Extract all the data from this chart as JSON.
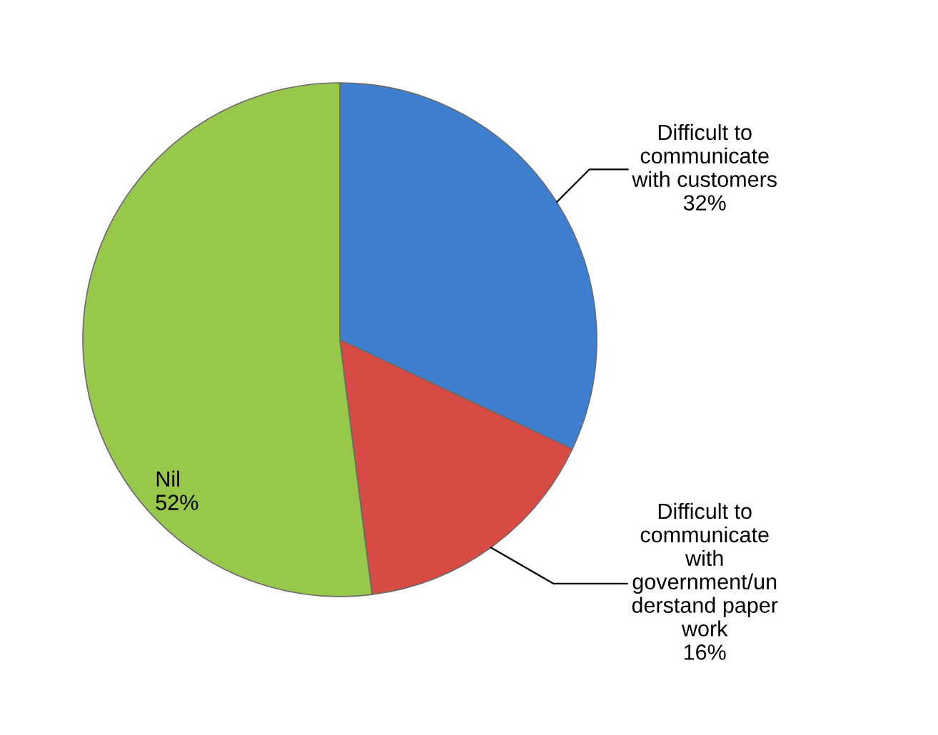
{
  "chart_data": {
    "type": "pie",
    "categories": [
      "Difficult to\ncommunicate\nwith customers",
      "Difficult to\ncommunicate\nwith\ngovernment/un\nderstand paper\nwork",
      "Nil"
    ],
    "values": [
      32,
      16,
      52
    ],
    "colors": [
      "#3f7fd0",
      "#d84b45",
      "#98c84a"
    ],
    "value_labels": [
      "32%",
      "16%",
      "52%"
    ],
    "legend": false
  }
}
